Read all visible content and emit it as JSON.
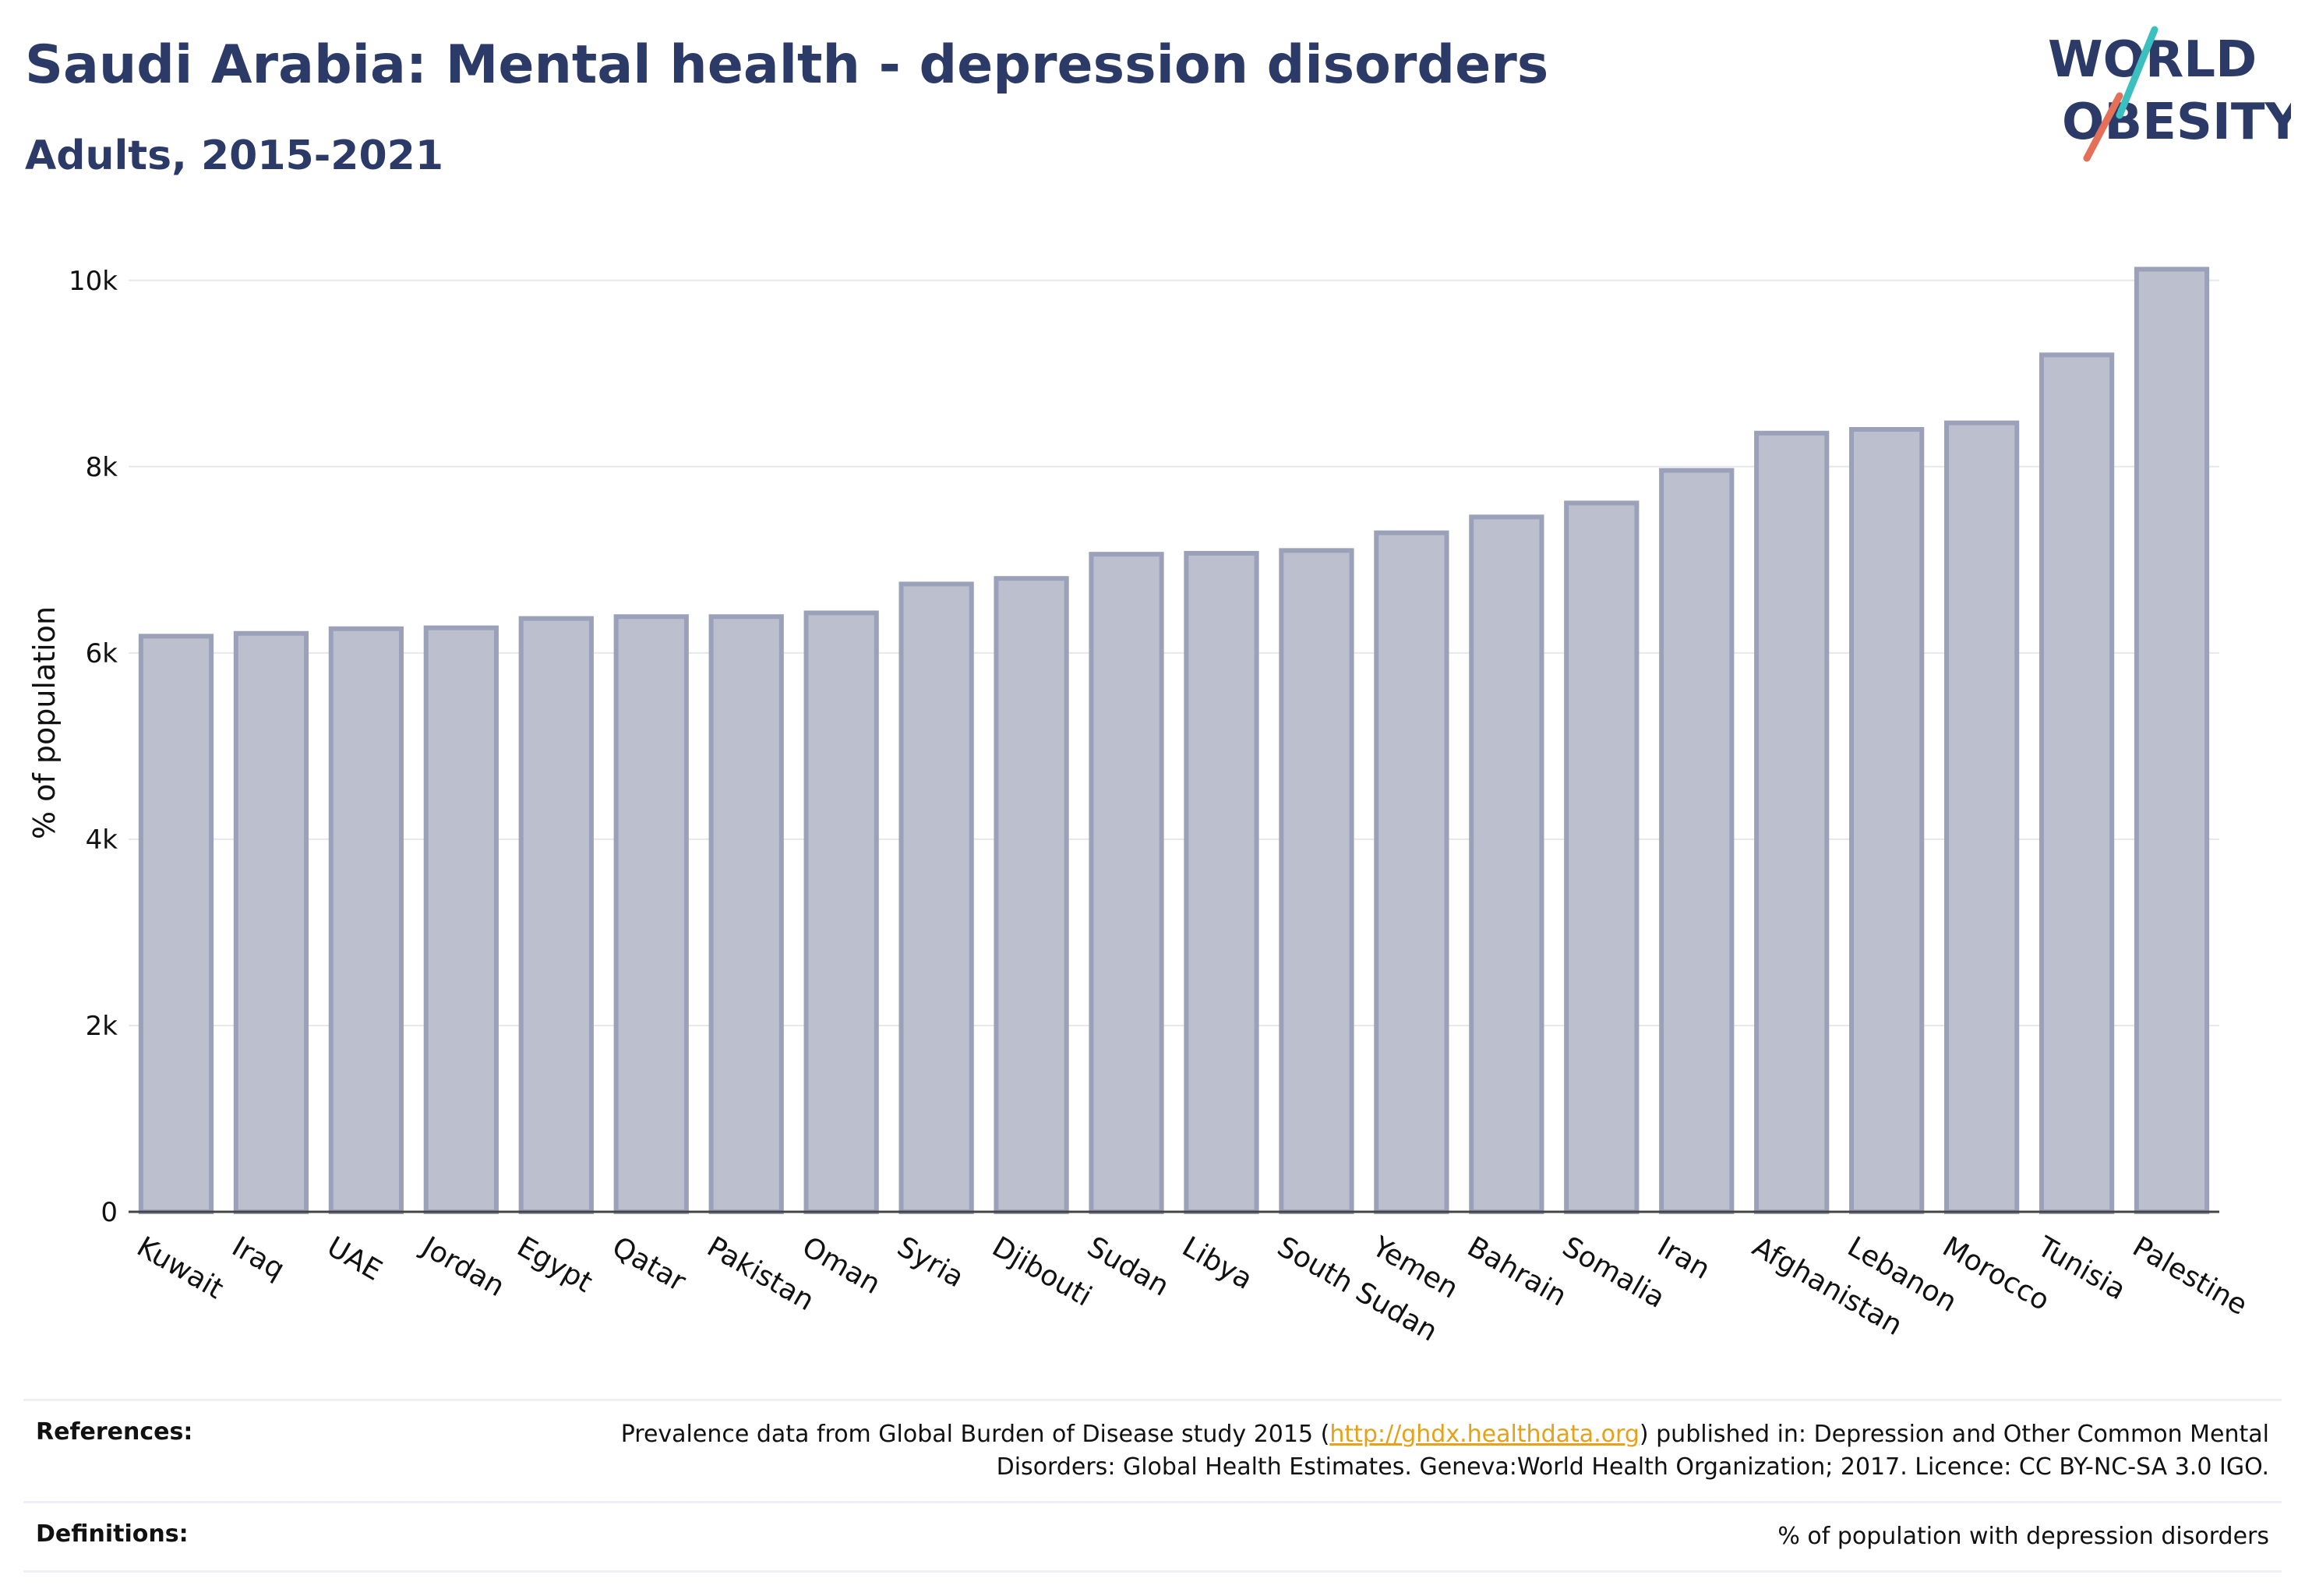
{
  "header": {
    "title": "Saudi Arabia: Mental health - depression disorders",
    "subtitle": "Adults, 2015-2021"
  },
  "logo": {
    "line1": "WORLD",
    "line2": "OBESITY",
    "text_color": "#2b3a67",
    "slash_colors": [
      "#3bbfbf",
      "#e5705a"
    ]
  },
  "chart_data": {
    "type": "bar",
    "title": "Saudi Arabia: Mental health - depression disorders",
    "subtitle": "Adults, 2015-2021",
    "xlabel": "",
    "ylabel": "% of population",
    "ylim": [
      0,
      10500
    ],
    "yticks": [
      0,
      2000,
      4000,
      6000,
      8000,
      10000
    ],
    "ytick_labels": [
      "0",
      "2k",
      "4k",
      "6k",
      "8k",
      "10k"
    ],
    "grid": true,
    "bar_fill": "#bcc0ce",
    "bar_stroke": "#9aa1b8",
    "categories": [
      "Kuwait",
      "Iraq",
      "UAE",
      "Jordan",
      "Egypt",
      "Qatar",
      "Pakistan",
      "Oman",
      "Syria",
      "Djibouti",
      "Sudan",
      "Libya",
      "South Sudan",
      "Yemen",
      "Bahrain",
      "Somalia",
      "Iran",
      "Afghanistan",
      "Lebanon",
      "Morocco",
      "Tunisia",
      "Palestine"
    ],
    "values": [
      6180,
      6210,
      6260,
      6270,
      6370,
      6390,
      6390,
      6430,
      6740,
      6800,
      7060,
      7070,
      7100,
      7290,
      7460,
      7610,
      7960,
      8360,
      8400,
      8470,
      9200,
      10120
    ]
  },
  "footer": {
    "references_label": "References:",
    "references_text_before": "Prevalence data from Global Burden of Disease study 2015 (",
    "references_link": "http://ghdx.healthdata.org",
    "references_text_after": ") published in: Depression and Other Common Mental Disorders: Global Health Estimates. Geneva:World Health Organization; 2017. Licence: CC BY-NC-SA 3.0 IGO.",
    "definitions_label": "Definitions:",
    "definitions_text": "% of population with depression disorders"
  }
}
